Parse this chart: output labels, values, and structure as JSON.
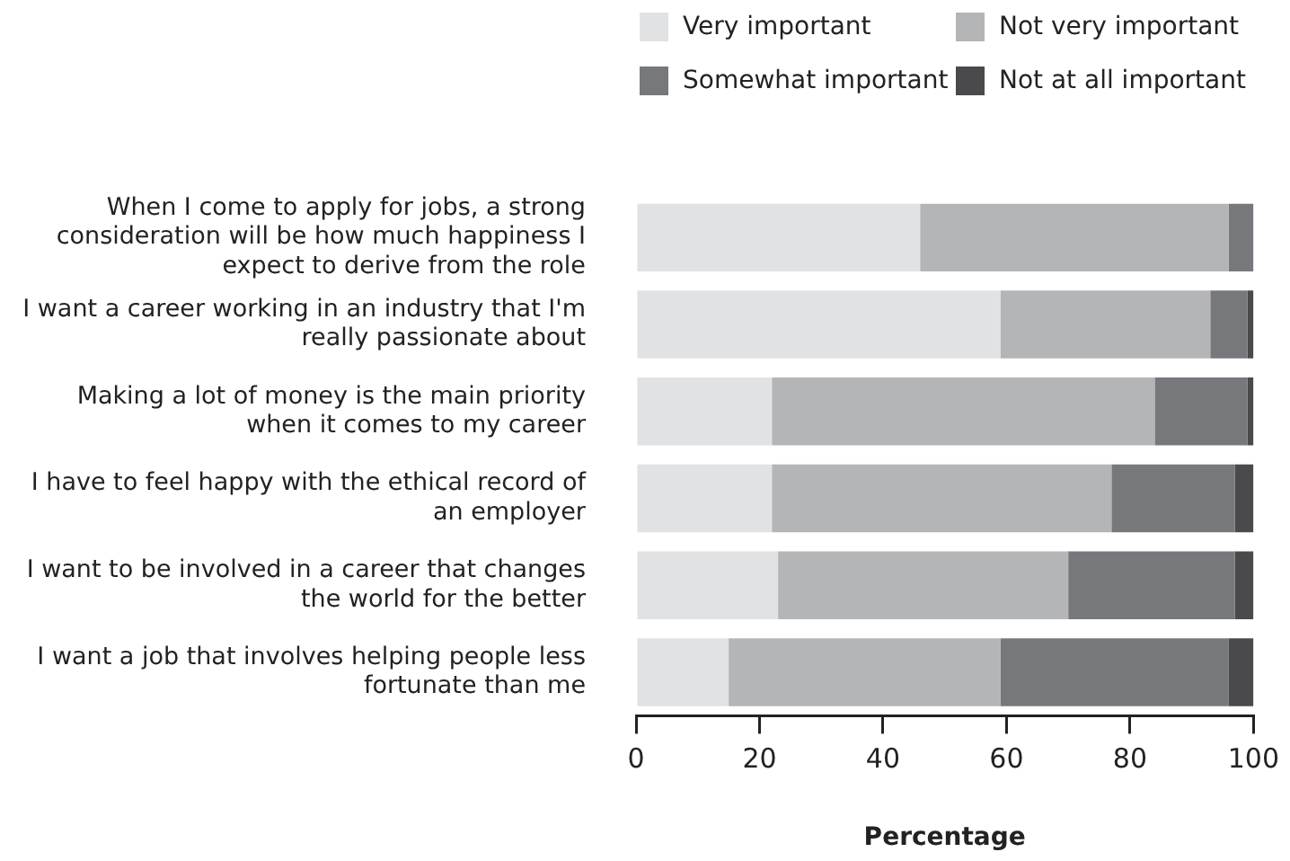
{
  "chart_data": {
    "type": "bar",
    "orientation": "horizontal",
    "stacked": true,
    "xlabel": "Percentage",
    "categories": [
      "When I come to apply for jobs, a strong consideration will be how much happiness I expect to derive from the role",
      "I want a career working in an industry that I'm really passionate about",
      "Making a lot of money is the main priority when it comes to my career",
      "I have to feel happy with the ethical record of an employer",
      "I want to be involved in a career that changes the world for the better",
      "I want a job that involves helping people less fortunate than me"
    ],
    "series": [
      {
        "name": "Very important",
        "color": "#e1e2e4",
        "values": [
          46,
          59,
          22,
          22,
          23,
          15
        ]
      },
      {
        "name": "Not very important",
        "color": "#b4b5b7",
        "values": [
          50,
          34,
          62,
          55,
          47,
          44
        ]
      },
      {
        "name": "Somewhat important",
        "color": "#77787c",
        "values": [
          4,
          6,
          15,
          20,
          27,
          37
        ]
      },
      {
        "name": "Not at all important",
        "color": "#4a4a4c",
        "values": [
          0,
          1,
          1,
          3,
          3,
          4
        ]
      }
    ],
    "xlim": [
      0,
      100
    ],
    "xticks": [
      0,
      20,
      40,
      60,
      80,
      100
    ],
    "grid": false,
    "legend": "top right"
  }
}
